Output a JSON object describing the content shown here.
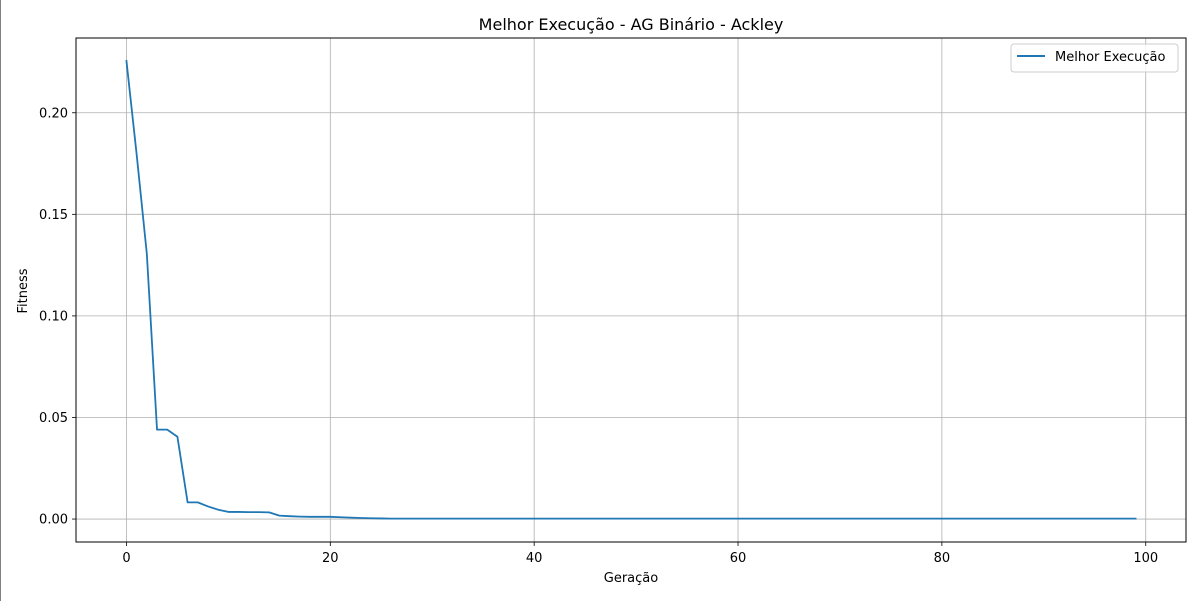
{
  "chart_data": {
    "type": "line",
    "title": "Melhor Execução - AG Binário - Ackley",
    "xlabel": "Geração",
    "ylabel": "Fitness",
    "xlim": [
      -4.95,
      103.95
    ],
    "ylim": [
      -0.0113,
      0.2368
    ],
    "xticks": [
      0,
      20,
      40,
      60,
      80,
      100
    ],
    "xtick_labels": [
      "0",
      "20",
      "40",
      "60",
      "80",
      "100"
    ],
    "yticks": [
      0.0,
      0.05,
      0.1,
      0.15,
      0.2
    ],
    "ytick_labels": [
      "0.00",
      "0.05",
      "0.10",
      "0.15",
      "0.20"
    ],
    "grid": true,
    "legend_position": "top-right",
    "colors": {
      "series": "#1f77b4",
      "grid": "#b0b0b0",
      "axes": "#000000"
    },
    "series": [
      {
        "name": "Melhor Execução",
        "x": [
          0,
          1,
          2,
          3,
          4,
          5,
          6,
          7,
          8,
          9,
          10,
          11,
          12,
          13,
          14,
          15,
          16,
          17,
          18,
          19,
          20,
          21,
          22,
          23,
          24,
          25,
          26,
          27,
          28,
          29,
          30,
          31,
          32,
          33,
          34,
          35,
          36,
          37,
          38,
          39,
          40,
          41,
          42,
          43,
          44,
          45,
          46,
          47,
          48,
          49,
          50,
          51,
          52,
          53,
          54,
          55,
          56,
          57,
          58,
          59,
          60,
          61,
          62,
          63,
          64,
          65,
          66,
          67,
          68,
          69,
          70,
          71,
          72,
          73,
          74,
          75,
          76,
          77,
          78,
          79,
          80,
          81,
          82,
          83,
          84,
          85,
          86,
          87,
          88,
          89,
          90,
          91,
          92,
          93,
          94,
          95,
          96,
          97,
          98,
          99
        ],
        "y": [
          0.2255,
          0.1795,
          0.1305,
          0.044,
          0.044,
          0.0405,
          0.0082,
          0.0082,
          0.0062,
          0.0046,
          0.0035,
          0.0035,
          0.0034,
          0.0034,
          0.0033,
          0.0017,
          0.0014,
          0.0012,
          0.0011,
          0.0011,
          0.0011,
          0.0009,
          0.0007,
          0.0005,
          0.0004,
          0.0003,
          0.0002,
          0.0002,
          0.0002,
          0.0002,
          0.0002,
          0.0002,
          0.0002,
          0.0002,
          0.0002,
          0.0002,
          0.0002,
          0.0002,
          0.0002,
          0.0002,
          0.0002,
          0.0002,
          0.0002,
          0.0002,
          0.0002,
          0.0002,
          0.0002,
          0.0002,
          0.0002,
          0.0002,
          0.0002,
          0.0002,
          0.0002,
          0.0002,
          0.0002,
          0.0002,
          0.0002,
          0.0002,
          0.0002,
          0.0002,
          0.0002,
          0.0002,
          0.0002,
          0.0002,
          0.0002,
          0.0002,
          0.0002,
          0.0002,
          0.0002,
          0.0002,
          0.0002,
          0.0002,
          0.0002,
          0.0002,
          0.0002,
          0.0002,
          0.0002,
          0.0002,
          0.0002,
          0.0002,
          0.0002,
          0.0002,
          0.0002,
          0.0002,
          0.0002,
          0.0002,
          0.0002,
          0.0002,
          0.0002,
          0.0002,
          0.0002,
          0.0002,
          0.0002,
          0.0002,
          0.0002,
          0.0002,
          0.0002,
          0.0002,
          0.0002,
          0.0002
        ]
      }
    ]
  }
}
